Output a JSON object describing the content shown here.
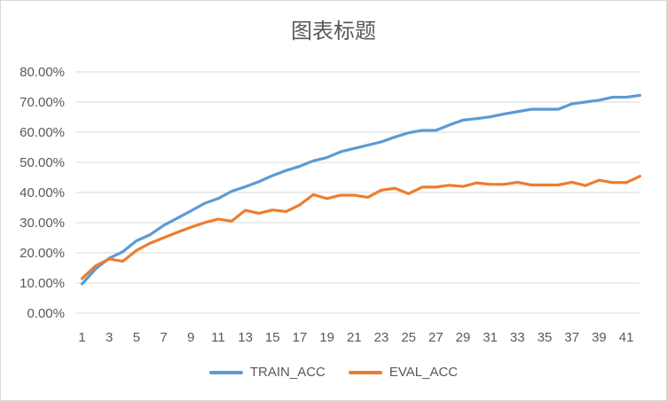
{
  "chart_data": {
    "type": "line",
    "title": "图表标题",
    "xlabel": "",
    "ylabel": "",
    "x": [
      1,
      2,
      3,
      4,
      5,
      6,
      7,
      8,
      9,
      10,
      11,
      12,
      13,
      14,
      15,
      16,
      17,
      18,
      19,
      20,
      21,
      22,
      23,
      24,
      25,
      26,
      27,
      28,
      29,
      30,
      31,
      32,
      33,
      34,
      35,
      36,
      37,
      38,
      39,
      40,
      41,
      42
    ],
    "x_tick_labels": [
      "1",
      "3",
      "5",
      "7",
      "9",
      "11",
      "13",
      "15",
      "17",
      "19",
      "21",
      "23",
      "25",
      "27",
      "29",
      "31",
      "33",
      "35",
      "37",
      "39",
      "41"
    ],
    "ylim": [
      0,
      0.8
    ],
    "y_tick_labels": [
      "0.00%",
      "10.00%",
      "20.00%",
      "30.00%",
      "40.00%",
      "50.00%",
      "60.00%",
      "70.00%",
      "80.00%"
    ],
    "grid": true,
    "legend_position": "bottom",
    "series": [
      {
        "name": "TRAIN_ACC",
        "color": "#5b9bd5",
        "values": [
          0.097,
          0.147,
          0.182,
          0.204,
          0.24,
          0.26,
          0.291,
          0.315,
          0.339,
          0.364,
          0.38,
          0.404,
          0.419,
          0.436,
          0.456,
          0.473,
          0.487,
          0.505,
          0.516,
          0.535,
          0.546,
          0.557,
          0.568,
          0.584,
          0.598,
          0.606,
          0.606,
          0.624,
          0.64,
          0.645,
          0.651,
          0.66,
          0.668,
          0.676,
          0.676,
          0.676,
          0.694,
          0.7,
          0.706,
          0.716,
          0.716,
          0.722
        ]
      },
      {
        "name": "EVAL_ACC",
        "color": "#ed7d31",
        "values": [
          0.115,
          0.157,
          0.18,
          0.172,
          0.208,
          0.232,
          0.25,
          0.268,
          0.285,
          0.3,
          0.312,
          0.305,
          0.341,
          0.331,
          0.342,
          0.337,
          0.359,
          0.393,
          0.38,
          0.391,
          0.391,
          0.384,
          0.408,
          0.414,
          0.396,
          0.418,
          0.418,
          0.424,
          0.42,
          0.432,
          0.427,
          0.427,
          0.434,
          0.425,
          0.425,
          0.425,
          0.434,
          0.423,
          0.441,
          0.433,
          0.433,
          0.454
        ]
      }
    ]
  }
}
